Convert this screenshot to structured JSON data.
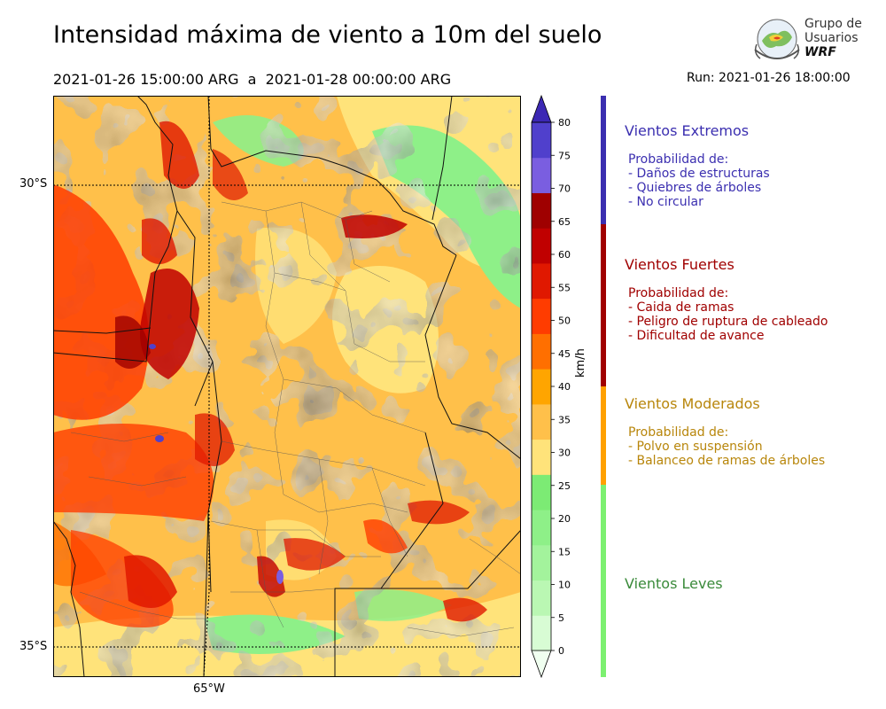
{
  "header": {
    "title": "Intensidad máxima de viento a 10m del suelo",
    "period": "2021-01-26 15:00:00 ARG  a  2021-01-28 00:00:00 ARG",
    "run": "Run: 2021-01-26 18:00:00"
  },
  "logo": {
    "line1": "Grupo de",
    "line2": "Usuarios",
    "line3": "WRF"
  },
  "map": {
    "lat_labels": [
      "30°S",
      "35°S"
    ],
    "lon_labels": [
      "65°W"
    ]
  },
  "colorbar": {
    "unit": "km/h",
    "ticks": [
      "0",
      "5",
      "10",
      "15",
      "20",
      "25",
      "30",
      "35",
      "40",
      "45",
      "50",
      "55",
      "60",
      "65",
      "70",
      "75",
      "80"
    ],
    "colors": [
      "#f0fff0",
      "#d8fcd4",
      "#baf7b3",
      "#a3f39c",
      "#8ef088",
      "#7ceb74",
      "#ffe37a",
      "#ffc04a",
      "#ffa500",
      "#ff6f00",
      "#ff3c00",
      "#e01800",
      "#c00000",
      "#9f0000",
      "#7a5ee0",
      "#5040cc",
      "#3c28b4"
    ]
  },
  "categories": [
    {
      "title": "Vientos Extremos",
      "color": "#3b2fb0",
      "header": "Probabilidad de:",
      "items": [
        "- Daños de estructuras",
        "- Quiebres de árboles",
        "- No circular"
      ]
    },
    {
      "title": "Vientos Fuertes",
      "color": "#a00000",
      "header": "Probabilidad de:",
      "items": [
        "- Caida de ramas",
        "- Peligro de ruptura de cableado",
        "- Dificultad de avance"
      ]
    },
    {
      "title": "Vientos Moderados",
      "color": "#b8860b",
      "header": "Probabilidad de:",
      "items": [
        "- Polvo en suspensión",
        "- Balanceo de ramas de árboles"
      ]
    },
    {
      "title": "Vientos Leves",
      "color": "#3a8a3a"
    }
  ],
  "bar_colors": [
    "#3b2fb0",
    "#a00000",
    "#ffa000",
    "#7cf070"
  ]
}
